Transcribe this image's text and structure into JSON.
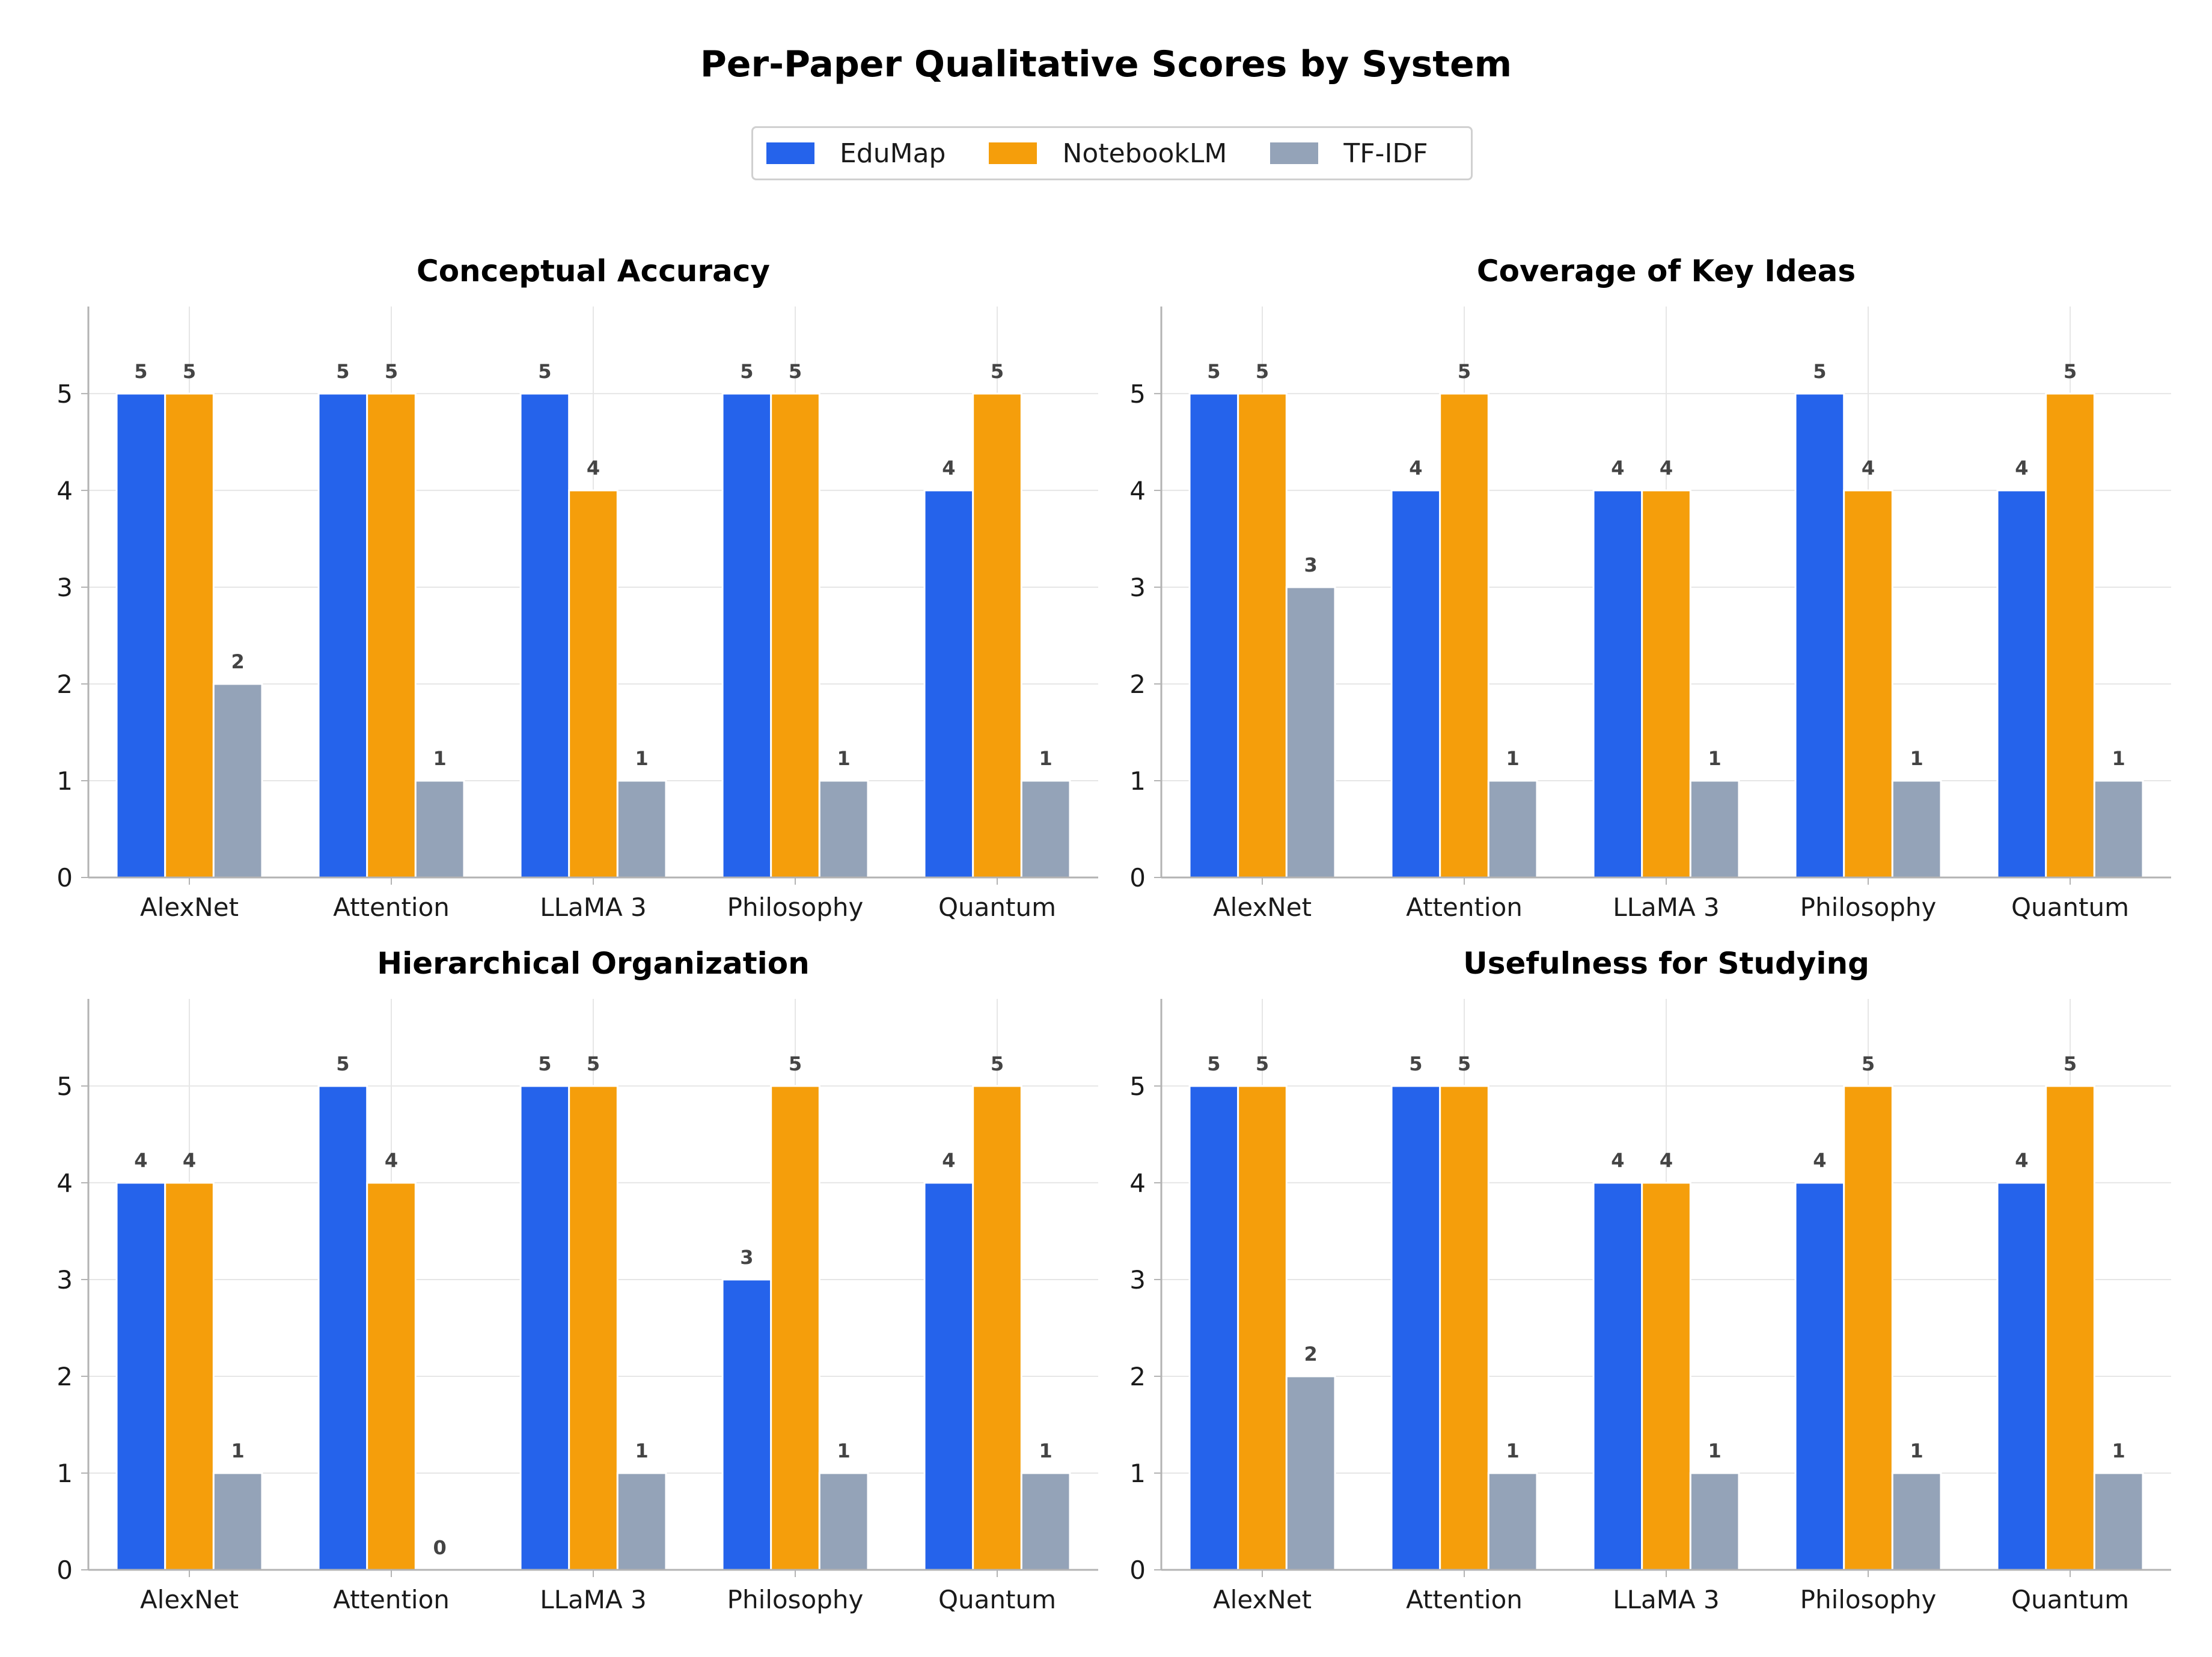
{
  "title": "Per-Paper Qualitative Scores by System",
  "legend": [
    {
      "label": "EduMap",
      "color": "#2563eb"
    },
    {
      "label": "NotebookLM",
      "color": "#f59e0b"
    },
    {
      "label": "TF-IDF",
      "color": "#94a3b8"
    }
  ],
  "chart_data": [
    {
      "type": "bar",
      "title": "Conceptual Accuracy",
      "categories": [
        "AlexNet",
        "Attention",
        "LLaMA 3",
        "Philosophy",
        "Quantum"
      ],
      "series": [
        {
          "name": "EduMap",
          "values": [
            5,
            5,
            5,
            5,
            4
          ]
        },
        {
          "name": "NotebookLM",
          "values": [
            5,
            5,
            4,
            5,
            5
          ]
        },
        {
          "name": "TF-IDF",
          "values": [
            2,
            1,
            1,
            1,
            1
          ]
        }
      ],
      "yticks": [
        0,
        1,
        2,
        3,
        4,
        5
      ],
      "ylim": [
        0,
        5.9
      ],
      "grid": true,
      "legend": "top-center"
    },
    {
      "type": "bar",
      "title": "Coverage of Key Ideas",
      "categories": [
        "AlexNet",
        "Attention",
        "LLaMA 3",
        "Philosophy",
        "Quantum"
      ],
      "series": [
        {
          "name": "EduMap",
          "values": [
            5,
            4,
            4,
            5,
            4
          ]
        },
        {
          "name": "NotebookLM",
          "values": [
            5,
            5,
            4,
            4,
            5
          ]
        },
        {
          "name": "TF-IDF",
          "values": [
            3,
            1,
            1,
            1,
            1
          ]
        }
      ],
      "yticks": [
        0,
        1,
        2,
        3,
        4,
        5
      ],
      "ylim": [
        0,
        5.9
      ],
      "grid": true,
      "legend": "top-center"
    },
    {
      "type": "bar",
      "title": "Hierarchical Organization",
      "categories": [
        "AlexNet",
        "Attention",
        "LLaMA 3",
        "Philosophy",
        "Quantum"
      ],
      "series": [
        {
          "name": "EduMap",
          "values": [
            4,
            5,
            5,
            3,
            4
          ]
        },
        {
          "name": "NotebookLM",
          "values": [
            4,
            4,
            5,
            5,
            5
          ]
        },
        {
          "name": "TF-IDF",
          "values": [
            1,
            0,
            1,
            1,
            1
          ]
        }
      ],
      "yticks": [
        0,
        1,
        2,
        3,
        4,
        5
      ],
      "ylim": [
        0,
        5.9
      ],
      "grid": true,
      "legend": "top-center"
    },
    {
      "type": "bar",
      "title": "Usefulness for Studying",
      "categories": [
        "AlexNet",
        "Attention",
        "LLaMA 3",
        "Philosophy",
        "Quantum"
      ],
      "series": [
        {
          "name": "EduMap",
          "values": [
            5,
            5,
            4,
            4,
            4
          ]
        },
        {
          "name": "NotebookLM",
          "values": [
            5,
            5,
            4,
            5,
            5
          ]
        },
        {
          "name": "TF-IDF",
          "values": [
            2,
            1,
            1,
            1,
            1
          ]
        }
      ],
      "yticks": [
        0,
        1,
        2,
        3,
        4,
        5
      ],
      "ylim": [
        0,
        5.9
      ],
      "grid": true,
      "legend": "top-center"
    }
  ]
}
